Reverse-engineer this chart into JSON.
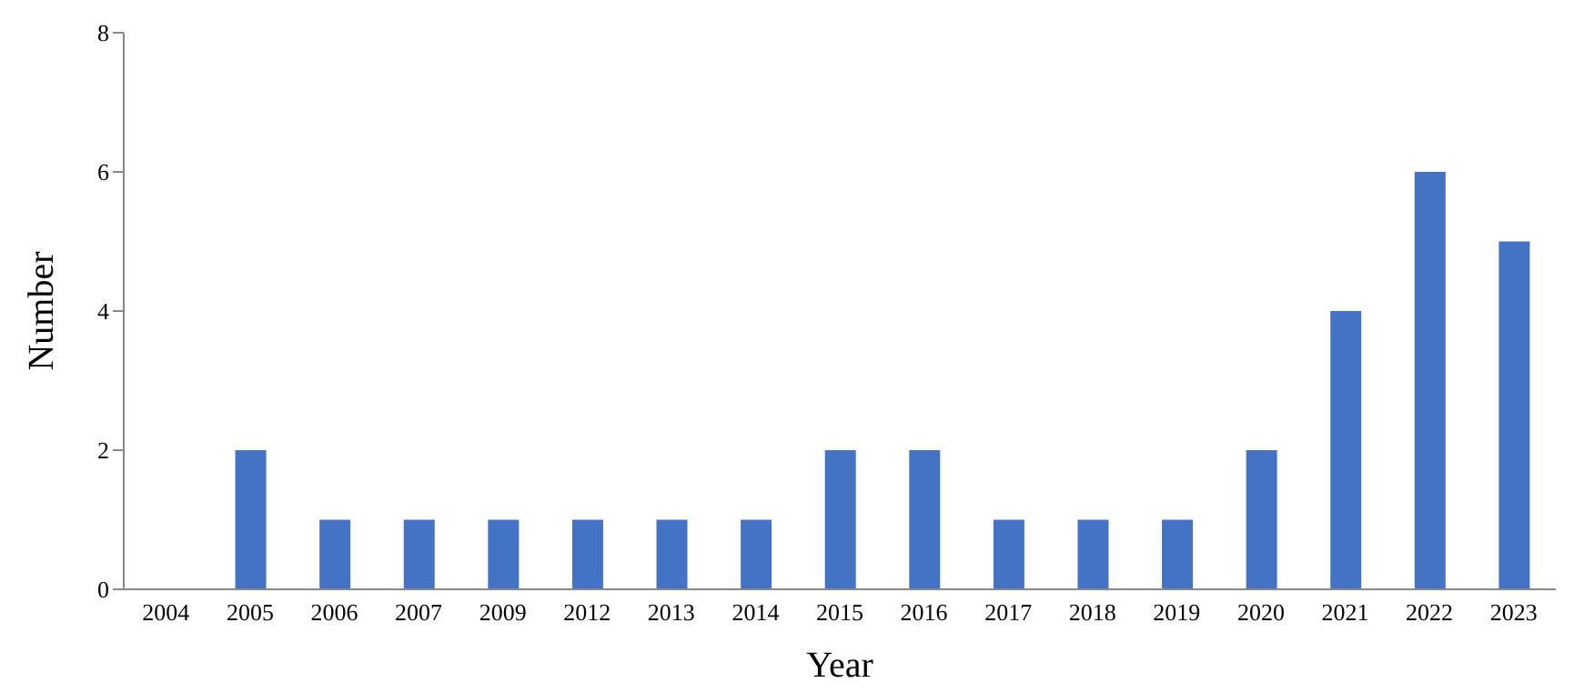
{
  "chart_data": {
    "type": "bar",
    "xlabel": "Year",
    "ylabel": "Number",
    "categories": [
      "2004",
      "2005",
      "2006",
      "2007",
      "2009",
      "2012",
      "2013",
      "2014",
      "2015",
      "2016",
      "2017",
      "2018",
      "2019",
      "2020",
      "2021",
      "2022",
      "2023"
    ],
    "values": [
      0,
      2,
      1,
      1,
      1,
      1,
      1,
      1,
      2,
      2,
      1,
      1,
      1,
      2,
      4,
      6,
      5
    ],
    "color": "#4472c4",
    "ylim": [
      0,
      8
    ],
    "yticks": [
      0,
      2,
      4,
      6,
      8
    ],
    "grid": false,
    "legend": false
  }
}
